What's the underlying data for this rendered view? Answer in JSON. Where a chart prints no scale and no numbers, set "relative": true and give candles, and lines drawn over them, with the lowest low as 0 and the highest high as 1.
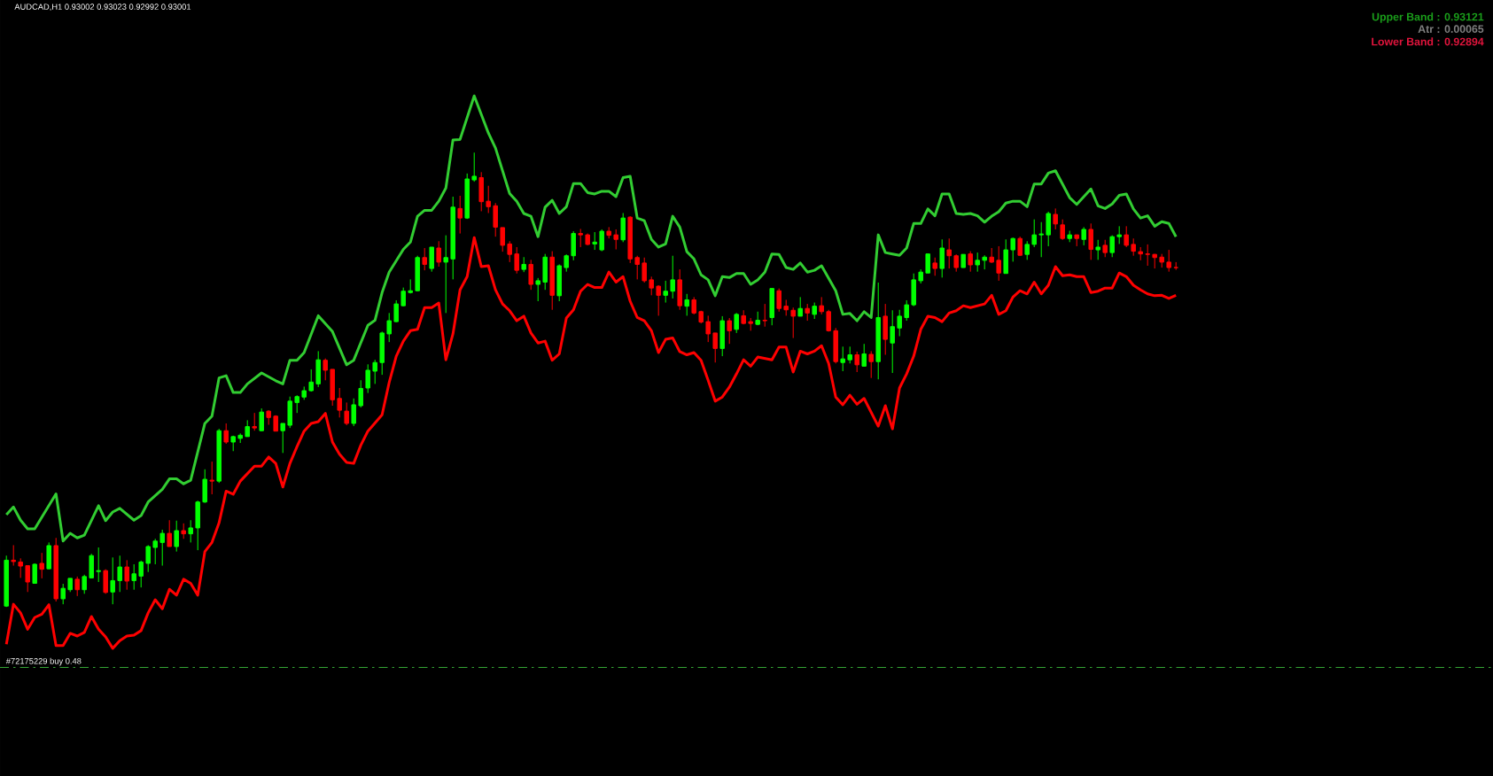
{
  "chart_data": {
    "type": "candlestick",
    "relative": true,
    "title": "AUDCAD,H1  0.93002 0.93023 0.92992 0.93001",
    "annotations": [
      "Upper Band : 0.93121",
      "Atr : 0.00065",
      "Lower Band : 0.92894"
    ],
    "categories": [
      null,
      null,
      null,
      null,
      null,
      null,
      null,
      null,
      null,
      null,
      null,
      null,
      null,
      null,
      null,
      null,
      null,
      null,
      null,
      null,
      null,
      null,
      null,
      null,
      null,
      null,
      null,
      null,
      null,
      null,
      null,
      null,
      null,
      null,
      null,
      null,
      null,
      null,
      null,
      null,
      null,
      null,
      null,
      null,
      null,
      null,
      null,
      null,
      null,
      null,
      null,
      null,
      null,
      null,
      null,
      null,
      null,
      null,
      null,
      null,
      null,
      null,
      null,
      null,
      null,
      null,
      null,
      null,
      null,
      null,
      null,
      null,
      null,
      null,
      null,
      null,
      null,
      null,
      null,
      null,
      null,
      null,
      null,
      null,
      null,
      null,
      null,
      null,
      null,
      null,
      null,
      null,
      null,
      null,
      null,
      null,
      null,
      null,
      null,
      null,
      null,
      null,
      null,
      null,
      null,
      null,
      null,
      null,
      null,
      null,
      null,
      null,
      null,
      null,
      null,
      null,
      null,
      null,
      null,
      null,
      null,
      null,
      null,
      null,
      null,
      null,
      null,
      null,
      null,
      null,
      null,
      null,
      null,
      null,
      null,
      null,
      null,
      null,
      null,
      null,
      null,
      null,
      null,
      null,
      null,
      null,
      null,
      null,
      null,
      null,
      null,
      null,
      null,
      null,
      null,
      null,
      null,
      null,
      null,
      null,
      null,
      null,
      null,
      null,
      null,
      null
    ],
    "ohlc": [
      [
        0.002,
        0.113,
        0,
        0.103
      ],
      [
        0.103,
        0.136,
        0.091,
        0.1
      ],
      [
        0.099,
        0.107,
        0.064,
        0.09
      ],
      [
        0.091,
        0.091,
        0.033,
        0.055
      ],
      [
        0.052,
        0.096,
        0.052,
        0.094
      ],
      [
        0.096,
        0.119,
        0.063,
        0.083
      ],
      [
        0.084,
        0.142,
        0.083,
        0.135
      ],
      [
        0.135,
        0.152,
        0.012,
        0.018
      ],
      [
        0.018,
        0.051,
        0.006,
        0.041
      ],
      [
        0.038,
        0.063,
        0.033,
        0.063
      ],
      [
        0.061,
        0.067,
        0.024,
        0.038
      ],
      [
        0.038,
        0.071,
        0.029,
        0.067
      ],
      [
        0.064,
        0.117,
        0.063,
        0.113
      ],
      [
        0.078,
        0.131,
        0.055,
        0.08
      ],
      [
        0.08,
        0.083,
        0.029,
        0.032
      ],
      [
        0.033,
        0.109,
        0.006,
        0.058
      ],
      [
        0.058,
        0.113,
        0.033,
        0.088
      ],
      [
        0.088,
        0.103,
        0.038,
        0.057
      ],
      [
        0.058,
        0.094,
        0.038,
        0.073
      ],
      [
        0.068,
        0.102,
        0.043,
        0.099
      ],
      [
        0.096,
        0.136,
        0.077,
        0.133
      ],
      [
        0.131,
        0.15,
        0.094,
        0.145
      ],
      [
        0.142,
        0.17,
        0.091,
        0.162
      ],
      [
        0.162,
        0.191,
        0.133,
        0.133
      ],
      [
        0.133,
        0.19,
        0.122,
        0.168
      ],
      [
        0.168,
        0.184,
        0.15,
        0.161
      ],
      [
        0.161,
        0.191,
        0.142,
        0.174
      ],
      [
        0.174,
        0.234,
        0.125,
        0.231
      ],
      [
        0.231,
        0.303,
        0.229,
        0.281
      ],
      [
        0.279,
        0.32,
        0.248,
        0.277
      ],
      [
        0.277,
        0.392,
        0.273,
        0.388
      ],
      [
        0.388,
        0.404,
        0.359,
        0.363
      ],
      [
        0.363,
        0.377,
        0.343,
        0.375
      ],
      [
        0.371,
        0.382,
        0.361,
        0.378
      ],
      [
        0.375,
        0.411,
        0.375,
        0.397
      ],
      [
        0.397,
        0.427,
        0.388,
        0.394
      ],
      [
        0.388,
        0.437,
        0.387,
        0.429
      ],
      [
        0.431,
        0.433,
        0.401,
        0.417
      ],
      [
        0.42,
        0.422,
        0.387,
        0.387
      ],
      [
        0.388,
        0.404,
        0.339,
        0.404
      ],
      [
        0.4,
        0.463,
        0.394,
        0.453
      ],
      [
        0.45,
        0.466,
        0.427,
        0.463
      ],
      [
        0.462,
        0.485,
        0.456,
        0.476
      ],
      [
        0.476,
        0.523,
        0.474,
        0.495
      ],
      [
        0.491,
        0.563,
        0.484,
        0.544
      ],
      [
        0.543,
        0.547,
        0.499,
        0.521
      ],
      [
        0.523,
        0.523,
        0.443,
        0.456
      ],
      [
        0.459,
        0.482,
        0.417,
        0.433
      ],
      [
        0.431,
        0.45,
        0.4,
        0.404
      ],
      [
        0.404,
        0.459,
        0.398,
        0.445
      ],
      [
        0.443,
        0.499,
        0.439,
        0.481
      ],
      [
        0.482,
        0.534,
        0.471,
        0.521
      ],
      [
        0.519,
        0.544,
        0.491,
        0.538
      ],
      [
        0.538,
        0.606,
        0.511,
        0.603
      ],
      [
        0.601,
        0.647,
        0.583,
        0.63
      ],
      [
        0.628,
        0.675,
        0.627,
        0.667
      ],
      [
        0.663,
        0.703,
        0.662,
        0.695
      ],
      [
        0.692,
        0.721,
        0.69,
        0.696
      ],
      [
        0.696,
        0.773,
        0.695,
        0.769
      ],
      [
        0.769,
        0.79,
        0.741,
        0.754
      ],
      [
        0.745,
        0.792,
        0.738,
        0.792
      ],
      [
        0.79,
        0.805,
        0.749,
        0.759
      ],
      [
        0.759,
        0.818,
        0.647,
        0.769
      ],
      [
        0.766,
        0.903,
        0.721,
        0.88
      ],
      [
        0.877,
        0.905,
        0.822,
        0.856
      ],
      [
        0.856,
        0.954,
        0.854,
        0.942
      ],
      [
        0.94,
        1,
        0.936,
        0.948
      ],
      [
        0.945,
        0.957,
        0.871,
        0.892
      ],
      [
        0.893,
        0.927,
        0.867,
        0.881
      ],
      [
        0.883,
        0.889,
        0.815,
        0.836
      ],
      [
        0.835,
        0.835,
        0.782,
        0.796
      ],
      [
        0.799,
        0.805,
        0.759,
        0.776
      ],
      [
        0.777,
        0.792,
        0.734,
        0.741
      ],
      [
        0.743,
        0.77,
        0.737,
        0.754
      ],
      [
        0.754,
        0.764,
        0.698,
        0.71
      ],
      [
        0.71,
        0.724,
        0.673,
        0.718
      ],
      [
        0.715,
        0.777,
        0.698,
        0.77
      ],
      [
        0.77,
        0.783,
        0.654,
        0.686
      ],
      [
        0.685,
        0.754,
        0.673,
        0.751
      ],
      [
        0.747,
        0.776,
        0.738,
        0.773
      ],
      [
        0.773,
        0.827,
        0.763,
        0.822
      ],
      [
        0.822,
        0.832,
        0.792,
        0.819
      ],
      [
        0.819,
        0.822,
        0.796,
        0.798
      ],
      [
        0.799,
        0.825,
        0.786,
        0.803
      ],
      [
        0.786,
        0.831,
        0.783,
        0.827
      ],
      [
        0.827,
        0.836,
        0.811,
        0.818
      ],
      [
        0.819,
        0.831,
        0.787,
        0.809
      ],
      [
        0.808,
        0.867,
        0.803,
        0.856
      ],
      [
        0.858,
        0.86,
        0.757,
        0.766
      ],
      [
        0.769,
        0.773,
        0.721,
        0.754
      ],
      [
        0.757,
        0.769,
        0.714,
        0.718
      ],
      [
        0.72,
        0.727,
        0.686,
        0.702
      ],
      [
        0.706,
        0.708,
        0.641,
        0.686
      ],
      [
        0.686,
        0.718,
        0.67,
        0.695
      ],
      [
        0.695,
        0.773,
        0.679,
        0.72
      ],
      [
        0.72,
        0.743,
        0.654,
        0.663
      ],
      [
        0.662,
        0.689,
        0.641,
        0.676
      ],
      [
        0.676,
        0.682,
        0.644,
        0.647
      ],
      [
        0.65,
        0.652,
        0.624,
        0.627
      ],
      [
        0.628,
        0.641,
        0.583,
        0.601
      ],
      [
        0.603,
        0.603,
        0.538,
        0.569
      ],
      [
        0.569,
        0.64,
        0.552,
        0.63
      ],
      [
        0.63,
        0.636,
        0.579,
        0.608
      ],
      [
        0.611,
        0.647,
        0.603,
        0.644
      ],
      [
        0.641,
        0.653,
        0.622,
        0.624
      ],
      [
        0.628,
        0.636,
        0.608,
        0.624
      ],
      [
        0.622,
        0.65,
        0.62,
        0.631
      ],
      [
        0.631,
        0.667,
        0.617,
        0.63
      ],
      [
        0.637,
        0.701,
        0.62,
        0.701
      ],
      [
        0.696,
        0.701,
        0.65,
        0.657
      ],
      [
        0.662,
        0.676,
        0.641,
        0.654
      ],
      [
        0.653,
        0.659,
        0.592,
        0.64
      ],
      [
        0.64,
        0.682,
        0.64,
        0.657
      ],
      [
        0.657,
        0.667,
        0.63,
        0.647
      ],
      [
        0.644,
        0.67,
        0.634,
        0.662
      ],
      [
        0.663,
        0.682,
        0.644,
        0.65
      ],
      [
        0.65,
        0.654,
        0.606,
        0.608
      ],
      [
        0.608,
        0.614,
        0.536,
        0.54
      ],
      [
        0.538,
        0.573,
        0.519,
        0.546
      ],
      [
        0.544,
        0.573,
        0.536,
        0.555
      ],
      [
        0.555,
        0.562,
        0.517,
        0.533
      ],
      [
        0.53,
        0.579,
        0.53,
        0.557
      ],
      [
        0.556,
        0.563,
        0.504,
        0.54
      ],
      [
        0.54,
        0.714,
        0.501,
        0.637
      ],
      [
        0.64,
        0.667,
        0.555,
        0.589
      ],
      [
        0.581,
        0.653,
        0.515,
        0.617
      ],
      [
        0.614,
        0.654,
        0.596,
        0.64
      ],
      [
        0.637,
        0.675,
        0.63,
        0.665
      ],
      [
        0.665,
        0.734,
        0.662,
        0.72
      ],
      [
        0.718,
        0.743,
        0.712,
        0.737
      ],
      [
        0.735,
        0.777,
        0.735,
        0.777
      ],
      [
        0.757,
        0.769,
        0.729,
        0.745
      ],
      [
        0.745,
        0.809,
        0.725,
        0.79
      ],
      [
        0.786,
        0.811,
        0.745,
        0.773
      ],
      [
        0.773,
        0.776,
        0.738,
        0.747
      ],
      [
        0.747,
        0.776,
        0.747,
        0.776
      ],
      [
        0.777,
        0.783,
        0.738,
        0.753
      ],
      [
        0.753,
        0.78,
        0.738,
        0.763
      ],
      [
        0.763,
        0.774,
        0.743,
        0.77
      ],
      [
        0.77,
        0.79,
        0.757,
        0.759
      ],
      [
        0.763,
        0.794,
        0.718,
        0.735
      ],
      [
        0.734,
        0.809,
        0.734,
        0.786
      ],
      [
        0.786,
        0.813,
        0.76,
        0.811
      ],
      [
        0.811,
        0.815,
        0.773,
        0.774
      ],
      [
        0.776,
        0.805,
        0.764,
        0.798
      ],
      [
        0.798,
        0.853,
        0.792,
        0.819
      ],
      [
        0.819,
        0.847,
        0.77,
        0.821
      ],
      [
        0.819,
        0.87,
        0.794,
        0.866
      ],
      [
        0.864,
        0.877,
        0.831,
        0.843
      ],
      [
        0.841,
        0.853,
        0.808,
        0.811
      ],
      [
        0.811,
        0.828,
        0.803,
        0.819
      ],
      [
        0.819,
        0.819,
        0.794,
        0.811
      ],
      [
        0.809,
        0.836,
        0.796,
        0.831
      ],
      [
        0.831,
        0.844,
        0.764,
        0.787
      ],
      [
        0.786,
        0.808,
        0.764,
        0.792
      ],
      [
        0.796,
        0.808,
        0.77,
        0.78
      ],
      [
        0.78,
        0.818,
        0.77,
        0.815
      ],
      [
        0.815,
        0.838,
        0.799,
        0.819
      ],
      [
        0.819,
        0.838,
        0.792,
        0.796
      ],
      [
        0.798,
        0.811,
        0.773,
        0.783
      ],
      [
        0.782,
        0.792,
        0.763,
        0.777
      ],
      [
        0.777,
        0.798,
        0.751,
        0.776
      ],
      [
        0.776,
        0.777,
        0.745,
        0.769
      ],
      [
        0.77,
        0.777,
        0.747,
        0.759
      ],
      [
        0.759,
        0.786,
        0.738,
        0.747
      ],
      [
        0.747,
        0.759,
        0.742,
        0.747
      ]
    ],
    "series": [
      {
        "type": "line",
        "color": "#32cd32",
        "values": [
          0.203,
          0.22,
          0.191,
          0.172,
          0.172,
          null,
          null,
          0.249,
          0.145,
          0.162,
          0.152,
          0.158,
          null,
          0.223,
          0.19,
          0.209,
          0.217,
          null,
          0.191,
          0.201,
          0.231,
          null,
          0.259,
          0.282,
          0.282,
          0.271,
          0.279,
          null,
          0.404,
          0.42,
          0.504,
          0.509,
          0.472,
          0.472,
          0.491,
          null,
          0.515,
          null,
          0.498,
          0.491,
          0.543,
          0.543,
          0.56,
          null,
          0.641,
          null,
          0.606,
          null,
          0.533,
          0.543,
          null,
          0.62,
          0.631,
          0.692,
          0.737,
          null,
          0.787,
          0.803,
          0.86,
          0.873,
          0.873,
          0.893,
          0.922,
          1.028,
          1.029,
          null,
          1.125,
          null,
          1.043,
          1.01,
          null,
          0.91,
          0.893,
          0.866,
          0.86,
          0.815,
          0.88,
          0.895,
          0.866,
          0.881,
          0.932,
          0.932,
          0.912,
          0.909,
          0.915,
          0.915,
          0.903,
          0.945,
          0.948,
          0.856,
          0.85,
          0.809,
          0.792,
          0.799,
          0.86,
          0.836,
          0.782,
          0.766,
          0.731,
          0.72,
          0.685,
          0.727,
          0.725,
          0.734,
          0.734,
          0.71,
          0.72,
          0.737,
          0.777,
          0.776,
          0.747,
          0.743,
          0.757,
          0.737,
          0.741,
          0.751,
          null,
          0.696,
          0.644,
          0.646,
          0.63,
          0.65,
          0.637,
          0.819,
          0.78,
          0.777,
          0.774,
          0.79,
          0.844,
          0.844,
          0.876,
          0.861,
          0.909,
          0.909,
          0.866,
          0.864,
          0.866,
          0.861,
          0.847,
          0.86,
          0.87,
          0.889,
          0.893,
          0.893,
          0.881,
          0.931,
          0.931,
          0.955,
          0.96,
          null,
          0.901,
          0.886,
          null,
          0.92,
          0.883,
          0.877,
          0.887,
          0.906,
          0.909,
          0.876,
          0.856,
          0.861,
          0.838,
          0.848,
          0.844,
          0.815
        ]
      },
      {
        "type": "line",
        "color": "#ff0000",
        "values": [
          -0.082,
          0.006,
          -0.013,
          -0.049,
          -0.023,
          -0.016,
          0.005,
          -0.085,
          -0.085,
          -0.058,
          -0.064,
          -0.056,
          -0.021,
          -0.049,
          -0.066,
          -0.091,
          -0.074,
          -0.064,
          -0.062,
          -0.052,
          -0.013,
          0.016,
          -0.004,
          0.039,
          0.026,
          0.061,
          0.052,
          0.026,
          0.122,
          0.142,
          0.185,
          0.255,
          0.248,
          0.277,
          null,
          0.31,
          0.31,
          0.33,
          0.316,
          0.264,
          0.316,
          0.353,
          0.387,
          0.404,
          0.408,
          0.426,
          0.363,
          0.336,
          0.318,
          0.316,
          0.356,
          0.387,
          0.405,
          0.423,
          0.494,
          0.552,
          0.585,
          0.608,
          0.611,
          0.659,
          0.659,
          0.669,
          0.544,
          0.601,
          0.698,
          0.727,
          0.813,
          0.749,
          0.751,
          0.698,
          0.667,
          0.652,
          0.63,
          0.64,
          0.603,
          0.581,
          0.585,
          0.543,
          0.557,
          0.636,
          0.654,
          0.695,
          0.71,
          0.703,
          0.703,
          0.737,
          0.715,
          0.727,
          0.673,
          0.637,
          0.63,
          0.608,
          0.56,
          0.589,
          0.592,
          0.562,
          0.555,
          0.56,
          0.543,
          0.499,
          0.453,
          0.462,
          0.484,
          0.513,
          0.544,
          0.53,
          0.55,
          null,
          0.544,
          0.572,
          0.572,
          0.517,
          0.563,
          0.557,
          0.563,
          0.575,
          0.536,
          0.462,
          0.445,
          0.466,
          0.446,
          0.459,
          null,
          0.398,
          0.443,
          0.392,
          0.482,
          0.513,
          0.552,
          0.611,
          0.64,
          0.637,
          0.628,
          0.647,
          0.652,
          0.663,
          0.659,
          0.663,
          0.667,
          0.686,
          0.644,
          0.652,
          0.682,
          0.696,
          0.689,
          0.715,
          0.689,
          0.708,
          0.749,
          0.729,
          0.731,
          0.727,
          0.727,
          0.692,
          0.695,
          0.702,
          0.702,
          0.735,
          0.727,
          0.708,
          0.698,
          0.689,
          0.685,
          0.686,
          0.679,
          0.686
        ]
      }
    ],
    "ref_lines": [
      {
        "axis": "y",
        "value": -0.133,
        "label": "#72175229 buy 0.48",
        "color": "#32a032",
        "line_style": "dashed"
      }
    ],
    "line_style": "solid"
  }
}
